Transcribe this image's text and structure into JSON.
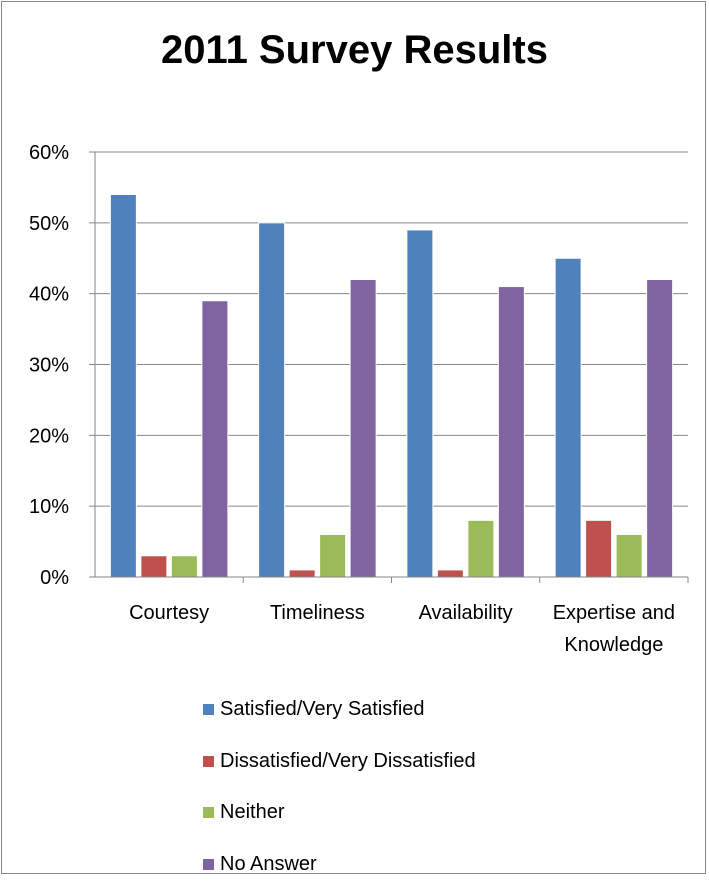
{
  "chart_data": {
    "type": "bar",
    "title": "2011 Survey Results",
    "categories": [
      "Courtesy",
      "Timeliness",
      "Availability",
      "Expertise and Knowledge"
    ],
    "category_lines": [
      [
        "Courtesy"
      ],
      [
        "Timeliness"
      ],
      [
        "Availability"
      ],
      [
        "Expertise and",
        "Knowledge"
      ]
    ],
    "series": [
      {
        "name": "Satisfied/Very Satisfied",
        "color": "#4F81BD",
        "values": [
          54,
          50,
          49,
          45
        ]
      },
      {
        "name": "Dissatisfied/Very Dissatisfied",
        "color": "#C0504D",
        "values": [
          3,
          1,
          1,
          8
        ]
      },
      {
        "name": "Neither",
        "color": "#9BBB59",
        "values": [
          3,
          6,
          8,
          6
        ]
      },
      {
        "name": "No Answer",
        "color": "#8064A2",
        "values": [
          39,
          42,
          41,
          42
        ]
      }
    ],
    "ylim": [
      0,
      60
    ],
    "yticks": [
      0,
      10,
      20,
      30,
      40,
      50,
      60
    ],
    "ytick_labels": [
      "0%",
      "10%",
      "20%",
      "30%",
      "40%",
      "50%",
      "60%"
    ],
    "grid": true,
    "legend_position": "bottom"
  }
}
